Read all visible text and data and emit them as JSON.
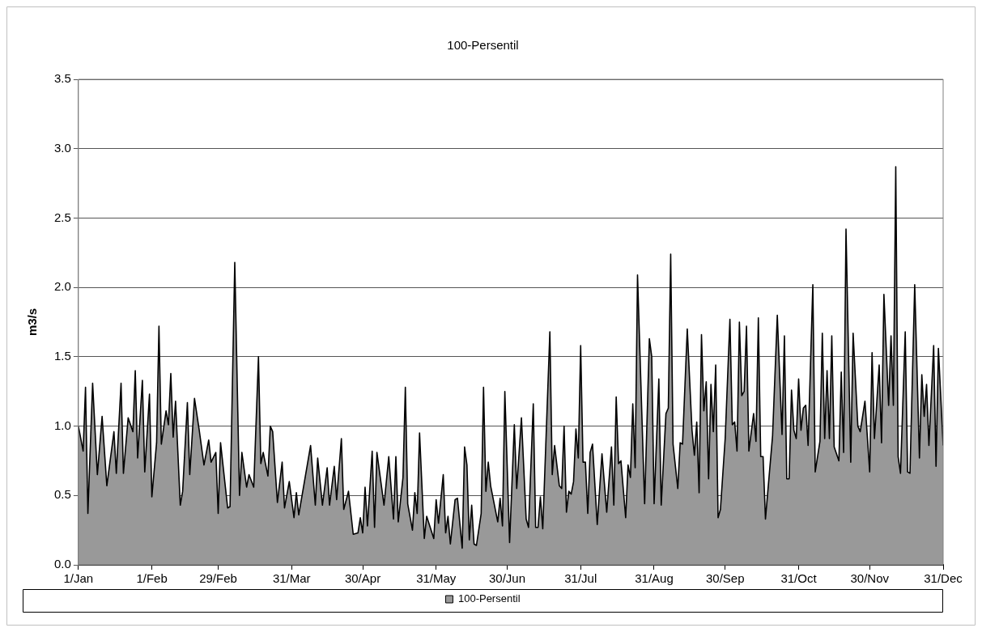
{
  "chart_data": {
    "type": "area",
    "title": "100-Persentil",
    "ylabel": "m3/s",
    "x": [
      "--01-01",
      "--01-03",
      "--01-04",
      "--01-05",
      "--01-07",
      "--01-09",
      "--01-11",
      "--01-13",
      "--01-16",
      "--01-17",
      "--01-19",
      "--01-20",
      "--01-22",
      "--01-24",
      "--01-25",
      "--01-26",
      "--01-28",
      "--01-29",
      "--01-31",
      "--02-01",
      "--02-03",
      "--02-04",
      "--02-05",
      "--02-07",
      "--02-08",
      "--02-09",
      "--02-10",
      "--02-11",
      "--02-13",
      "--02-14",
      "--02-16",
      "--02-17",
      "--02-19",
      "--02-21",
      "--02-23",
      "--02-25",
      "--02-26",
      "--02-28",
      "--02-29",
      "--03-01",
      "--03-04",
      "--03-05",
      "--03-07",
      "--03-09",
      "--03-10",
      "--03-12",
      "--03-13",
      "--03-15",
      "--03-17",
      "--03-18",
      "--03-19",
      "--03-21",
      "--03-22",
      "--03-23",
      "--03-25",
      "--03-27",
      "--03-28",
      "--03-30",
      "--04-01",
      "--04-02",
      "--04-03",
      "--04-08",
      "--04-10",
      "--04-11",
      "--04-13",
      "--04-15",
      "--04-16",
      "--04-18",
      "--04-19",
      "--04-21",
      "--04-22",
      "--04-24",
      "--04-26",
      "--04-28",
      "--04-29",
      "--04-30",
      "--05-01",
      "--05-02",
      "--05-04",
      "--05-05",
      "--05-06",
      "--05-09",
      "--05-11",
      "--05-13",
      "--05-14",
      "--05-15",
      "--05-17",
      "--05-18",
      "--05-19",
      "--05-21",
      "--05-22",
      "--05-23",
      "--05-24",
      "--05-26",
      "--05-27",
      "--05-30",
      "--05-31",
      "--06-01",
      "--06-03",
      "--06-04",
      "--06-05",
      "--06-06",
      "--06-08",
      "--06-09",
      "--06-11",
      "--06-12",
      "--06-13",
      "--06-14",
      "--06-15",
      "--06-16",
      "--06-17",
      "--06-19",
      "--06-20",
      "--06-21",
      "--06-22",
      "--06-23",
      "--06-26",
      "--06-27",
      "--06-28",
      "--06-29",
      "--07-01",
      "--07-03",
      "--07-04",
      "--07-06",
      "--07-08",
      "--07-09",
      "--07-11",
      "--07-12",
      "--07-13",
      "--07-14",
      "--07-15",
      "--07-18",
      "--07-19",
      "--07-20",
      "--07-22",
      "--07-23",
      "--07-24",
      "--07-25",
      "--07-26",
      "--07-27",
      "--07-28",
      "--07-29",
      "--07-30",
      "--07-31",
      "--08-01",
      "--08-02",
      "--08-03",
      "--08-04",
      "--08-05",
      "--08-07",
      "--08-09",
      "--08-11",
      "--08-13",
      "--08-14",
      "--08-15",
      "--08-16",
      "--08-17",
      "--08-19",
      "--08-20",
      "--08-21",
      "--08-22",
      "--08-23",
      "--08-24",
      "--08-27",
      "--08-29",
      "--08-30",
      "--08-31",
      "--09-02",
      "--09-03",
      "--09-05",
      "--09-06",
      "--09-07",
      "--09-08",
      "--09-10",
      "--09-11",
      "--09-12",
      "--09-14",
      "--09-16",
      "--09-17",
      "--09-18",
      "--09-19",
      "--09-20",
      "--09-21",
      "--09-22",
      "--09-23",
      "--09-24",
      "--09-25",
      "--09-26",
      "--09-27",
      "--09-28",
      "--09-30",
      "--10-02",
      "--10-03",
      "--10-04",
      "--10-05",
      "--10-06",
      "--10-07",
      "--10-08",
      "--10-09",
      "--10-10",
      "--10-12",
      "--10-13",
      "--10-14",
      "--10-15",
      "--10-16",
      "--10-17",
      "--10-20",
      "--10-22",
      "--10-24",
      "--10-25",
      "--10-26",
      "--10-27",
      "--10-28",
      "--10-29",
      "--10-30",
      "--10-31",
      "--11-01",
      "--11-02",
      "--11-03",
      "--11-04",
      "--11-06",
      "--11-07",
      "--11-09",
      "--11-10",
      "--11-11",
      "--11-12",
      "--11-13",
      "--11-14",
      "--11-15",
      "--11-17",
      "--11-18",
      "--11-19",
      "--11-20",
      "--11-22",
      "--11-23",
      "--11-25",
      "--11-26",
      "--11-28",
      "--11-30",
      "--12-01",
      "--12-02",
      "--12-04",
      "--12-05",
      "--12-06",
      "--12-08",
      "--12-09",
      "--12-10",
      "--12-11",
      "--12-12",
      "--12-13",
      "--12-15",
      "--12-16",
      "--12-17",
      "--12-19",
      "--12-21",
      "--12-22",
      "--12-23",
      "--12-24",
      "--12-25",
      "--12-27",
      "--12-28",
      "--12-29",
      "--12-31"
    ],
    "series": [
      {
        "name": "100-Persentil",
        "color": "#999999",
        "values": [
          1.0,
          0.82,
          1.28,
          0.37,
          1.31,
          0.65,
          1.07,
          0.57,
          0.96,
          0.66,
          1.31,
          0.66,
          1.06,
          0.96,
          1.4,
          0.77,
          1.33,
          0.67,
          1.23,
          0.49,
          0.88,
          1.72,
          0.87,
          1.11,
          1.01,
          1.38,
          0.92,
          1.18,
          0.43,
          0.53,
          1.17,
          0.65,
          1.2,
          0.97,
          0.72,
          0.9,
          0.74,
          0.81,
          0.37,
          0.88,
          0.41,
          0.42,
          2.18,
          0.5,
          0.81,
          0.56,
          0.65,
          0.56,
          1.5,
          0.73,
          0.81,
          0.64,
          1.0,
          0.96,
          0.45,
          0.74,
          0.41,
          0.6,
          0.34,
          0.52,
          0.36,
          0.86,
          0.43,
          0.77,
          0.43,
          0.7,
          0.43,
          0.71,
          0.47,
          0.91,
          0.4,
          0.53,
          0.22,
          0.23,
          0.34,
          0.23,
          0.56,
          0.28,
          0.82,
          0.27,
          0.81,
          0.43,
          0.78,
          0.33,
          0.78,
          0.31,
          0.63,
          1.28,
          0.44,
          0.25,
          0.52,
          0.37,
          0.95,
          0.19,
          0.35,
          0.19,
          0.47,
          0.3,
          0.65,
          0.23,
          0.35,
          0.15,
          0.47,
          0.48,
          0.12,
          0.85,
          0.72,
          0.18,
          0.43,
          0.15,
          0.14,
          0.37,
          1.28,
          0.53,
          0.74,
          0.57,
          0.31,
          0.48,
          0.28,
          1.25,
          0.16,
          1.01,
          0.55,
          1.06,
          0.33,
          0.27,
          1.16,
          0.27,
          0.27,
          0.49,
          0.26,
          1.68,
          0.65,
          0.86,
          0.57,
          0.55,
          1.0,
          0.38,
          0.53,
          0.51,
          0.6,
          0.98,
          0.77,
          1.58,
          0.74,
          0.74,
          0.37,
          0.81,
          0.87,
          0.29,
          0.8,
          0.38,
          0.85,
          0.43,
          1.21,
          0.73,
          0.75,
          0.34,
          0.72,
          0.63,
          1.16,
          0.7,
          2.09,
          0.44,
          1.63,
          1.5,
          0.44,
          1.34,
          0.43,
          1.09,
          1.13,
          2.24,
          0.87,
          0.55,
          0.88,
          0.87,
          1.7,
          0.97,
          0.79,
          1.03,
          0.52,
          1.66,
          1.11,
          1.32,
          0.62,
          1.3,
          0.96,
          1.44,
          0.34,
          0.4,
          0.91,
          1.77,
          1.01,
          1.03,
          0.82,
          1.75,
          1.22,
          1.25,
          1.72,
          0.82,
          1.09,
          0.89,
          1.78,
          0.78,
          0.78,
          0.33,
          0.93,
          1.8,
          0.94,
          1.65,
          0.62,
          0.62,
          1.26,
          0.97,
          0.91,
          1.34,
          0.97,
          1.13,
          1.15,
          0.86,
          2.02,
          0.67,
          0.89,
          1.67,
          0.91,
          1.4,
          0.91,
          1.65,
          0.85,
          0.75,
          1.39,
          0.81,
          2.42,
          0.74,
          1.67,
          1.0,
          0.96,
          1.18,
          0.67,
          1.53,
          0.91,
          1.44,
          0.88,
          1.95,
          1.15,
          1.65,
          1.15,
          2.87,
          0.78,
          0.66,
          1.68,
          0.67,
          0.66,
          2.02,
          0.77,
          1.37,
          1.07,
          1.3,
          0.86,
          1.58,
          0.71,
          1.56,
          0.86
        ]
      }
    ],
    "xlim": [
      "--01-01",
      "--12-31"
    ],
    "xticks": [
      {
        "value": "--01-01",
        "label": "1/Jan"
      },
      {
        "value": "--02-01",
        "label": "1/Feb"
      },
      {
        "value": "--02-29",
        "label": "29/Feb"
      },
      {
        "value": "--03-31",
        "label": "31/Mar"
      },
      {
        "value": "--04-30",
        "label": "30/Apr"
      },
      {
        "value": "--05-31",
        "label": "31/May"
      },
      {
        "value": "--06-30",
        "label": "30/Jun"
      },
      {
        "value": "--07-31",
        "label": "31/Jul"
      },
      {
        "value": "--08-31",
        "label": "31/Aug"
      },
      {
        "value": "--09-30",
        "label": "30/Sep"
      },
      {
        "value": "--10-31",
        "label": "31/Oct"
      },
      {
        "value": "--11-30",
        "label": "30/Nov"
      },
      {
        "value": "--12-31",
        "label": "31/Dec"
      }
    ],
    "ylim": [
      0,
      3.5
    ],
    "yticks": [
      {
        "value": 0,
        "label": "0.0"
      },
      {
        "value": 0.5,
        "label": "0.5"
      },
      {
        "value": 1,
        "label": "1.0"
      },
      {
        "value": 1.5,
        "label": "1.5"
      },
      {
        "value": 2,
        "label": "2.0"
      },
      {
        "value": 2.5,
        "label": "2.5"
      },
      {
        "value": 3,
        "label": "3.0"
      },
      {
        "value": 3.5,
        "label": "3.5"
      }
    ],
    "grid": "y",
    "legend": "bottom"
  }
}
